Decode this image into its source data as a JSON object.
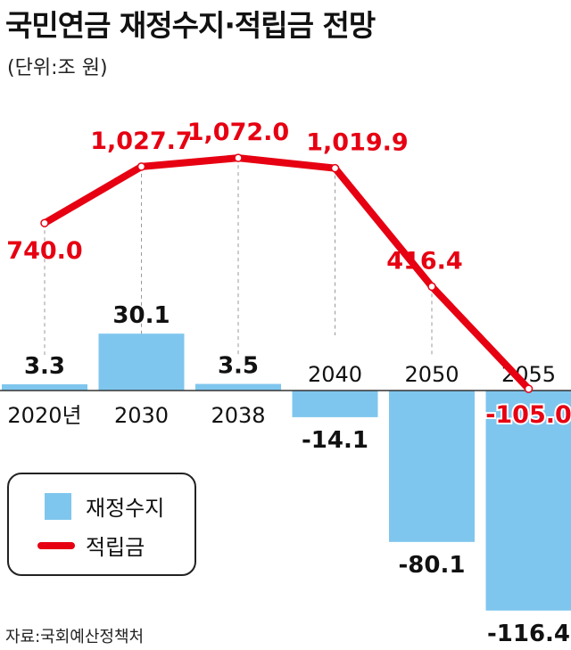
{
  "title": "국민연금 재정수지·적립금 전망",
  "subtitle": "(단위:조 원)",
  "source": "자료:국회예산정책처",
  "colors": {
    "bar": "#7fc6ee",
    "line": "#e60012",
    "line_label": "#e60012",
    "bar_label": "#111111"
  },
  "chart_data": {
    "type": "bar+line",
    "categories": [
      "2020년",
      "2030",
      "2038",
      "2040",
      "2050",
      "2055"
    ],
    "series": [
      {
        "name": "재정수지",
        "type": "bar",
        "values": [
          3.3,
          30.1,
          3.5,
          -14.1,
          -80.1,
          -116.4
        ],
        "labels": [
          "3.3",
          "30.1",
          "3.5",
          "-14.1",
          "-80.1",
          "-116.4"
        ]
      },
      {
        "name": "적립금",
        "type": "line",
        "values": [
          740.0,
          1027.7,
          1072.0,
          1019.9,
          416.4,
          -105.0
        ],
        "labels": [
          "740.0",
          "1,027.7",
          "1,072.0",
          "1,019.9",
          "416.4",
          "-105.0"
        ]
      }
    ],
    "legend": "bottom-left",
    "grid": false
  }
}
